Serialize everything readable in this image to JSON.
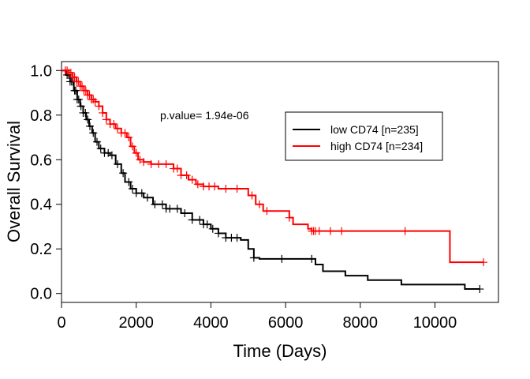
{
  "chart_data": {
    "type": "line",
    "title": "",
    "xlabel": "Time (Days)",
    "ylabel": "Overall Survival",
    "xlim": [
      0,
      11700
    ],
    "ylim": [
      -0.04,
      1.04
    ],
    "x_ticks": [
      0,
      2000,
      4000,
      6000,
      8000,
      10000
    ],
    "x_tick_labels": [
      "0",
      "2000",
      "4000",
      "6000",
      "8000",
      "10000"
    ],
    "y_ticks": [
      0.0,
      0.2,
      0.4,
      0.6,
      0.8,
      1.0
    ],
    "y_tick_labels": [
      "0.0",
      "0.2",
      "0.4",
      "0.6",
      "0.8",
      "1.0"
    ],
    "grid": false,
    "annotation": "p.value= 1.94e-06",
    "legend_position": "top-right",
    "series": [
      {
        "name": "low CD74 [n=235]",
        "color": "#000000",
        "steps": [
          [
            0,
            1.0
          ],
          [
            120,
            0.98
          ],
          [
            230,
            0.95
          ],
          [
            330,
            0.91
          ],
          [
            420,
            0.87
          ],
          [
            500,
            0.84
          ],
          [
            580,
            0.81
          ],
          [
            660,
            0.78
          ],
          [
            740,
            0.75
          ],
          [
            820,
            0.72
          ],
          [
            900,
            0.68
          ],
          [
            1000,
            0.65
          ],
          [
            1150,
            0.63
          ],
          [
            1300,
            0.62
          ],
          [
            1450,
            0.58
          ],
          [
            1600,
            0.54
          ],
          [
            1700,
            0.5
          ],
          [
            1850,
            0.47
          ],
          [
            2000,
            0.45
          ],
          [
            2200,
            0.43
          ],
          [
            2450,
            0.4
          ],
          [
            2800,
            0.38
          ],
          [
            3200,
            0.36
          ],
          [
            3500,
            0.33
          ],
          [
            3800,
            0.31
          ],
          [
            4000,
            0.29
          ],
          [
            4200,
            0.27
          ],
          [
            4400,
            0.25
          ],
          [
            4800,
            0.24
          ],
          [
            5000,
            0.2
          ],
          [
            5150,
            0.16
          ],
          [
            5300,
            0.155
          ],
          [
            6800,
            0.13
          ],
          [
            7000,
            0.1
          ],
          [
            7600,
            0.08
          ],
          [
            8200,
            0.06
          ],
          [
            9100,
            0.04
          ],
          [
            10800,
            0.02
          ],
          [
            11200,
            0.02
          ]
        ],
        "censor_x": [
          150,
          190,
          230,
          270,
          310,
          350,
          380,
          420,
          460,
          520,
          580,
          640,
          700,
          760,
          850,
          950,
          1050,
          1150,
          1250,
          1350,
          1500,
          1650,
          1800,
          1900,
          2000,
          2150,
          2300,
          2500,
          2700,
          2800,
          2900,
          3100,
          3300,
          3500,
          3700,
          3800,
          3900,
          4050,
          4200,
          4400,
          4550,
          4700,
          5150,
          5900,
          6700,
          11200
        ]
      },
      {
        "name": "high CD74 [n=234]",
        "color": "#ff0000",
        "steps": [
          [
            0,
            1.0
          ],
          [
            200,
            0.99
          ],
          [
            300,
            0.97
          ],
          [
            400,
            0.95
          ],
          [
            500,
            0.93
          ],
          [
            600,
            0.91
          ],
          [
            700,
            0.89
          ],
          [
            800,
            0.87
          ],
          [
            900,
            0.86
          ],
          [
            1000,
            0.84
          ],
          [
            1100,
            0.81
          ],
          [
            1200,
            0.78
          ],
          [
            1300,
            0.76
          ],
          [
            1450,
            0.74
          ],
          [
            1600,
            0.72
          ],
          [
            1750,
            0.7
          ],
          [
            1850,
            0.66
          ],
          [
            1950,
            0.63
          ],
          [
            2050,
            0.6
          ],
          [
            2200,
            0.59
          ],
          [
            2400,
            0.58
          ],
          [
            2800,
            0.58
          ],
          [
            3000,
            0.56
          ],
          [
            3200,
            0.53
          ],
          [
            3400,
            0.51
          ],
          [
            3600,
            0.49
          ],
          [
            3800,
            0.48
          ],
          [
            4200,
            0.47
          ],
          [
            5000,
            0.44
          ],
          [
            5200,
            0.4
          ],
          [
            5400,
            0.37
          ],
          [
            6100,
            0.34
          ],
          [
            6200,
            0.31
          ],
          [
            6600,
            0.29
          ],
          [
            6700,
            0.28
          ],
          [
            10400,
            0.14
          ],
          [
            11300,
            0.14
          ]
        ],
        "censor_x": [
          100,
          150,
          200,
          250,
          300,
          350,
          400,
          450,
          500,
          550,
          600,
          650,
          700,
          750,
          800,
          850,
          900,
          1000,
          1100,
          1200,
          1300,
          1400,
          1500,
          1600,
          1700,
          1800,
          1900,
          2000,
          2100,
          2200,
          2400,
          2600,
          2800,
          3000,
          3100,
          3200,
          3350,
          3500,
          3650,
          3800,
          3950,
          4100,
          4400,
          4700,
          5100,
          5300,
          5500,
          6100,
          6700,
          6750,
          6800,
          6900,
          7200,
          7500,
          9200,
          11300
        ]
      }
    ]
  }
}
